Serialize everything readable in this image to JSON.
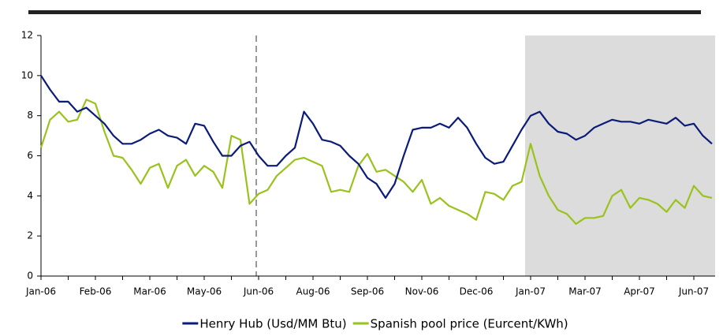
{
  "chart_data": {
    "type": "line",
    "categories": [
      "Jan-06",
      null,
      null,
      null,
      null,
      null,
      "Feb-06",
      null,
      null,
      null,
      null,
      null,
      "Mar-06",
      null,
      null,
      null,
      null,
      null,
      "May-06",
      null,
      null,
      null,
      null,
      null,
      "Jun-06",
      null,
      null,
      null,
      null,
      null,
      "Aug-06",
      null,
      null,
      null,
      null,
      null,
      "Sep-06",
      null,
      null,
      null,
      null,
      null,
      "Nov-06",
      null,
      null,
      null,
      null,
      null,
      "Dec-06",
      null,
      null,
      null,
      null,
      null,
      "Jan-07",
      null,
      null,
      null,
      null,
      null,
      "Mar-07",
      null,
      null,
      null,
      null,
      null,
      "Apr-07",
      null,
      null,
      null,
      null,
      null,
      "Jun-07",
      null,
      null
    ],
    "series": [
      {
        "name": "Henry Hub (Usd/MM Btu)",
        "color": "#0b1c78",
        "values": [
          10.0,
          9.3,
          8.7,
          8.7,
          8.2,
          8.4,
          8.0,
          7.6,
          7.0,
          6.6,
          6.6,
          6.8,
          7.1,
          7.3,
          7.0,
          6.9,
          6.6,
          7.6,
          7.5,
          6.7,
          6.0,
          6.0,
          6.5,
          6.7,
          6.0,
          5.5,
          5.5,
          6.0,
          6.4,
          8.2,
          7.6,
          6.8,
          6.7,
          6.5,
          6.0,
          5.6,
          4.9,
          4.6,
          3.9,
          4.6,
          6.0,
          7.3,
          7.4,
          7.4,
          7.6,
          7.4,
          7.9,
          7.4,
          6.6,
          5.9,
          5.6,
          5.7,
          6.5,
          7.3,
          8.0,
          8.2,
          7.6,
          7.2,
          7.1,
          6.8,
          7.0,
          7.4,
          7.6,
          7.8,
          7.7,
          7.7,
          7.6,
          7.8,
          7.7,
          7.6,
          7.9,
          7.5,
          7.6,
          7.0,
          6.6
        ]
      },
      {
        "name": "Spanish pool price (Eurcent/KWh)",
        "color": "#99c31c",
        "values": [
          6.4,
          7.8,
          8.2,
          7.7,
          7.8,
          8.8,
          8.6,
          7.2,
          6.0,
          5.9,
          5.3,
          4.6,
          5.4,
          5.6,
          4.4,
          5.5,
          5.8,
          5.0,
          5.5,
          5.2,
          4.4,
          7.0,
          6.8,
          3.6,
          4.1,
          4.3,
          5.0,
          5.4,
          5.8,
          5.9,
          5.7,
          5.5,
          4.2,
          4.3,
          4.2,
          5.5,
          6.1,
          5.2,
          5.3,
          5.0,
          4.7,
          4.2,
          4.8,
          3.6,
          3.9,
          3.5,
          3.3,
          3.1,
          2.8,
          4.2,
          4.1,
          3.8,
          4.5,
          4.7,
          6.6,
          5.0,
          4.0,
          3.3,
          3.1,
          2.6,
          2.9,
          2.9,
          3.0,
          4.0,
          4.3,
          3.4,
          3.9,
          3.8,
          3.6,
          3.2,
          3.8,
          3.4,
          4.5,
          4.0,
          3.9
        ]
      }
    ],
    "ylim": [
      0,
      12
    ],
    "yticks": [
      0,
      2,
      4,
      6,
      8,
      10,
      12
    ]
  }
}
